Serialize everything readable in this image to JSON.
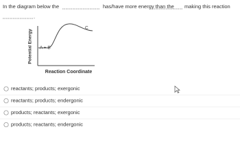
{
  "question": {
    "part1": "In the diagram below the",
    "part2": "has/have more energy than the",
    "part3": "making this reaction",
    "end": "."
  },
  "diagram": {
    "y_label": "Potential Energy",
    "x_label": "Reaction Coordinate",
    "reactant_label": "A + B",
    "product_label": "C"
  },
  "options": [
    "reactants; products; exergonic",
    "reactants; products; endergonic",
    "products; reactants; exergonic",
    "products; reactants; endergonic"
  ]
}
